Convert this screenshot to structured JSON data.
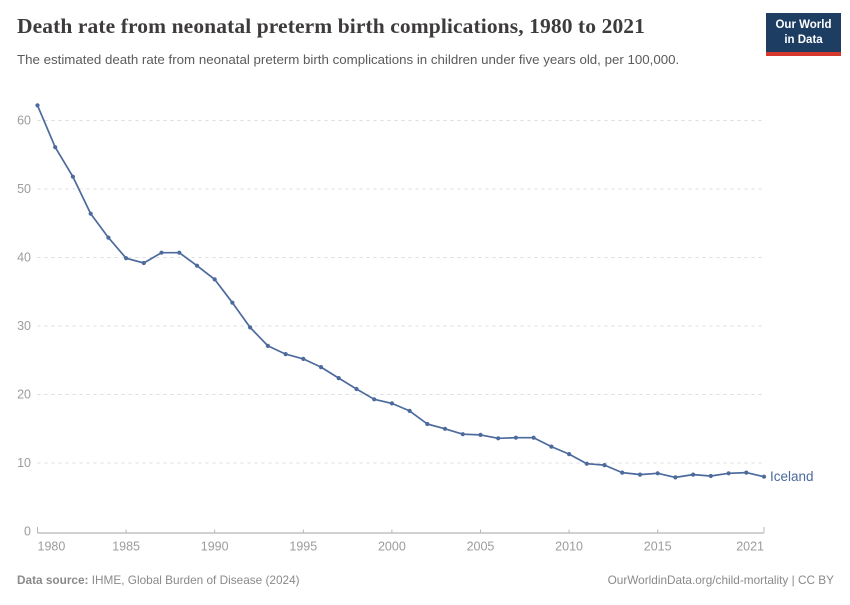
{
  "header": {
    "title": "Death rate from neonatal preterm birth complications, 1980 to 2021",
    "subtitle": "The estimated death rate from neonatal preterm birth complications in children under five years old, per 100,000.",
    "logo": {
      "line1": "Our World",
      "line2": "in Data",
      "bg_color": "#1d3d63",
      "accent_color": "#d7382d"
    }
  },
  "chart_data": {
    "type": "line",
    "title": "Death rate from neonatal preterm birth complications, 1980 to 2021",
    "xlabel": "",
    "ylabel": "",
    "xlim": [
      1980,
      2021
    ],
    "ylim": [
      0,
      60
    ],
    "grid": "horizontal-dashed",
    "legend_position": "end-of-line-label",
    "x_ticks": [
      1980,
      1985,
      1990,
      1995,
      2000,
      2005,
      2010,
      2015,
      2021
    ],
    "y_ticks": [
      0,
      10,
      20,
      30,
      40,
      50,
      60
    ],
    "series": [
      {
        "name": "Iceland",
        "color": "#4c6a9c",
        "x": [
          1980,
          1981,
          1982,
          1983,
          1984,
          1985,
          1986,
          1987,
          1988,
          1989,
          1990,
          1991,
          1992,
          1993,
          1994,
          1995,
          1996,
          1997,
          1998,
          1999,
          2000,
          2001,
          2002,
          2003,
          2004,
          2005,
          2006,
          2007,
          2008,
          2009,
          2010,
          2011,
          2012,
          2013,
          2014,
          2015,
          2016,
          2017,
          2018,
          2019,
          2020,
          2021
        ],
        "values": [
          62.2,
          56.1,
          51.8,
          46.4,
          42.9,
          39.9,
          39.2,
          40.7,
          40.7,
          38.8,
          36.8,
          33.4,
          29.8,
          27.1,
          25.9,
          25.2,
          24.0,
          22.4,
          20.8,
          19.3,
          18.7,
          17.6,
          15.7,
          15.0,
          14.2,
          14.1,
          13.6,
          13.7,
          13.7,
          12.4,
          11.3,
          9.9,
          9.7,
          8.6,
          8.3,
          8.5,
          7.9,
          8.3,
          8.1,
          8.5,
          8.6,
          8.0
        ]
      }
    ]
  },
  "footer": {
    "source_label": "Data source:",
    "source_value": " IHME, Global Burden of Disease (2024)",
    "link": "OurWorldinData.org/child-mortality | CC BY"
  }
}
